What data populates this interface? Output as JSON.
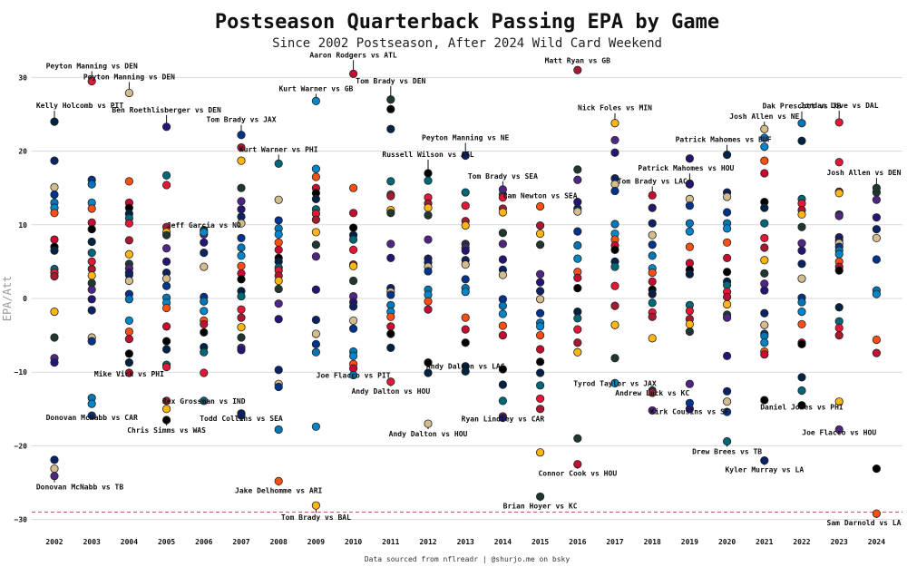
{
  "chart_data": {
    "type": "scatter",
    "title": "Postseason Quarterback Passing EPA by Game",
    "subtitle": "Since 2002 Postseason, After 2024 Wild Card Weekend",
    "ylabel": "EPA/Att",
    "xlabel": "",
    "caption": "Data sourced from nflreadr | @shurjo.me on bsky",
    "ylim": [
      -32,
      33
    ],
    "yticks": [
      30,
      20,
      10,
      0,
      -10,
      -20,
      -30
    ],
    "ytick_labels": [
      "30",
      "20",
      "10",
      "0",
      "−10",
      "−20",
      "−30"
    ],
    "grid": true,
    "reference_line": -29,
    "categories": [
      "2002",
      "2003",
      "2004",
      "2005",
      "2006",
      "2007",
      "2008",
      "2009",
      "2010",
      "2011",
      "2012",
      "2013",
      "2014",
      "2015",
      "2016",
      "2017",
      "2018",
      "2019",
      "2020",
      "2021",
      "2022",
      "2023",
      "2024"
    ],
    "team_colors": [
      "#0b2265",
      "#203731",
      "#e31837",
      "#000000",
      "#0085ca",
      "#d3bc8d",
      "#4f2683",
      "#a71930",
      "#002244",
      "#fb4f14",
      "#00338d",
      "#241773",
      "#ffb612",
      "#006778",
      "#c60c30",
      "#0076b6"
    ],
    "labeled_points": [
      {
        "label": "Peyton Manning vs DEN",
        "season": "2003",
        "y": 29.5
      },
      {
        "label": "Peyton Manning vs DEN",
        "season": "2004",
        "y": 27.9
      },
      {
        "label": "Kelly Holcomb vs PIT",
        "season": "2002",
        "y": 24.0
      },
      {
        "label": "Ben Roethlisberger vs DEN",
        "season": "2005",
        "y": 23.3
      },
      {
        "label": "Aaron Rodgers vs ATL",
        "season": "2010",
        "y": 30.5
      },
      {
        "label": "Tom Brady vs DEN",
        "season": "2011",
        "y": 27.0
      },
      {
        "label": "Kurt Warner vs GB",
        "season": "2009",
        "y": 26.8
      },
      {
        "label": "Matt Ryan vs GB",
        "season": "2016",
        "y": 31.0
      },
      {
        "label": "Tom Brady vs JAX",
        "season": "2007",
        "y": 22.2
      },
      {
        "label": "Kurt Warner vs PHI",
        "season": "2008",
        "y": 18.3
      },
      {
        "label": "Peyton Manning vs NE",
        "season": "2013",
        "y": 19.4
      },
      {
        "label": "Russell Wilson vs ATL",
        "season": "2012",
        "y": 17.0
      },
      {
        "label": "Tom Brady vs SEA",
        "season": "2014",
        "y": 14.8
      },
      {
        "label": "Cam Newton vs SEA",
        "season": "2015",
        "y": 12.5
      },
      {
        "label": "Nick Foles vs MIN",
        "season": "2017",
        "y": 23.8
      },
      {
        "label": "Dak Prescott vs TB",
        "season": "2022",
        "y": 23.8
      },
      {
        "label": "Jordan Love vs DAL",
        "season": "2023",
        "y": 23.9
      },
      {
        "label": "Josh Allen vs NE",
        "season": "2021",
        "y": 23.0
      },
      {
        "label": "Patrick Mahomes vs BUF",
        "season": "2020",
        "y": 19.5
      },
      {
        "label": "Patrick Mahomes vs HOU",
        "season": "2019",
        "y": 15.5
      },
      {
        "label": "Tom Brady vs LAC",
        "season": "2018",
        "y": 14.0
      },
      {
        "label": "Josh Allen vs DEN",
        "season": "2024",
        "y": 15.0
      },
      {
        "label": "Jeff Garcia vs NO",
        "season": "2006",
        "y": 9.0
      },
      {
        "label": "Mike Vick vs PHI",
        "season": "2004",
        "y": -10.1
      },
      {
        "label": "Donovan McNabb vs CAR",
        "season": "2003",
        "y": -15.9
      },
      {
        "label": "Rex Grossman vs IND",
        "season": "2006",
        "y": -13.9
      },
      {
        "label": "Todd Collins vs SEA",
        "season": "2007",
        "y": -15.9
      },
      {
        "label": "Chris Simms vs WAS",
        "season": "2005",
        "y": -16.5
      },
      {
        "label": "Donovan McNabb vs TB",
        "season": "2002",
        "y": -24.1
      },
      {
        "label": "Jake Delhomme vs ARI",
        "season": "2008",
        "y": -24.8
      },
      {
        "label": "Tom Brady vs BAL",
        "season": "2009",
        "y": -28.1
      },
      {
        "label": "Joe Flacco vs PIT",
        "season": "2010",
        "y": -10.4
      },
      {
        "label": "Andy Dalton vs HOU",
        "season": "2011",
        "y": -11.3
      },
      {
        "label": "Andy Dalton vs HOU",
        "season": "2012",
        "y": -17.0
      },
      {
        "label": "Andy Dalton vs LAC",
        "season": "2013",
        "y": -9.2
      },
      {
        "label": "Ryan Lindley vs CAR",
        "season": "2014",
        "y": -16.2
      },
      {
        "label": "Connor Cook vs HOU",
        "season": "2016",
        "y": -22.5
      },
      {
        "label": "Brian Hoyer vs KC",
        "season": "2015",
        "y": -26.9
      },
      {
        "label": "Tyrod Taylor vs JAX",
        "season": "2017",
        "y": -11.5
      },
      {
        "label": "Andrew Luck vs KC",
        "season": "2018",
        "y": -12.8
      },
      {
        "label": "Kirk Cousins vs SF",
        "season": "2019",
        "y": -14.2
      },
      {
        "label": "Drew Brees vs TB",
        "season": "2020",
        "y": -19.4
      },
      {
        "label": "Kyler Murray vs LA",
        "season": "2021",
        "y": -22.0
      },
      {
        "label": "Daniel Jones vs PHI",
        "season": "2022",
        "y": -14.5
      },
      {
        "label": "Joe Flacco vs HOU",
        "season": "2023",
        "y": -17.8
      },
      {
        "label": "Sam Darnold vs LA",
        "season": "2024",
        "y": -29.2
      }
    ],
    "series_by_season": {
      "2002": [
        18.7,
        15.1,
        14.1,
        13.0,
        12.3,
        11.6,
        8.0,
        7.0,
        6.5,
        4.0,
        3.5,
        3.0,
        -1.8,
        -5.3,
        -8.1,
        -8.7,
        -21.9,
        -23.1
      ],
      "2003": [
        16.1,
        15.5,
        13.0,
        12.2,
        10.3,
        9.4,
        7.7,
        6.2,
        5.0,
        4.0,
        3.1,
        2.1,
        1.2,
        -0.1,
        -1.6,
        -5.3,
        -5.8,
        -13.5,
        -14.3
      ],
      "2004": [
        15.9,
        13.0,
        12.3,
        11.5,
        10.9,
        10.2,
        7.9,
        6.0,
        4.7,
        4.1,
        3.5,
        3.2,
        2.4,
        0.6,
        -0.1,
        -3.0,
        -4.5,
        -5.5,
        -7.5,
        -8.7
      ],
      "2005": [
        16.7,
        15.4,
        9.7,
        9.0,
        8.6,
        6.8,
        5.0,
        3.5,
        2.7,
        1.7,
        0.1,
        -0.6,
        -1.3,
        -3.8,
        -5.8,
        -6.9,
        -9.0,
        -9.3,
        -13.9,
        -15.0
      ],
      "2006": [
        9.3,
        8.7,
        7.6,
        6.2,
        4.3,
        0.2,
        -0.4,
        -1.7,
        -3.0,
        -3.5,
        -4.6,
        -6.6,
        -7.3,
        -10.1
      ],
      "2007": [
        20.5,
        18.7,
        15.0,
        13.2,
        12.1,
        11.1,
        10.2,
        8.2,
        6.9,
        5.8,
        4.4,
        3.4,
        2.6,
        1.0,
        0.3,
        -1.5,
        -2.6,
        -3.9,
        -5.3,
        -6.7,
        -7.0,
        -15.6
      ],
      "2008": [
        13.4,
        10.6,
        9.5,
        8.7,
        7.6,
        6.6,
        5.5,
        5.0,
        4.2,
        3.8,
        3.1,
        2.4,
        1.3,
        -0.7,
        -2.8,
        -9.7,
        -11.6,
        -12.0,
        -17.8
      ],
      "2009": [
        17.6,
        16.5,
        15.0,
        14.3,
        13.5,
        12.1,
        11.5,
        10.7,
        9.0,
        7.3,
        5.7,
        1.2,
        -2.9,
        -4.8,
        -6.2,
        -7.3,
        -17.4
      ],
      "2010": [
        15.0,
        11.6,
        9.6,
        8.6,
        8.0,
        6.6,
        4.6,
        4.4,
        2.4,
        0.3,
        -0.5,
        -1.1,
        -3.0,
        -4.1,
        -7.2,
        -7.8,
        -8.9,
        -9.5
      ],
      "2011": [
        25.7,
        23.0,
        15.9,
        14.1,
        13.9,
        12.0,
        11.6,
        7.4,
        5.5,
        1.4,
        0.9,
        0.5,
        -0.9,
        -1.8,
        -2.5,
        -3.8,
        -4.8,
        -6.7
      ],
      "2012": [
        16.0,
        13.7,
        12.9,
        12.3,
        11.3,
        8.0,
        5.4,
        4.9,
        4.3,
        3.7,
        1.2,
        0.5,
        -0.4,
        -1.5,
        -8.7,
        -10.1
      ],
      "2013": [
        14.4,
        12.6,
        10.5,
        9.9,
        7.4,
        6.9,
        6.5,
        5.2,
        4.6,
        2.6,
        1.4,
        0.9,
        -2.6,
        -4.2,
        -6.0,
        -9.9
      ],
      "2014": [
        14.1,
        13.7,
        12.2,
        11.7,
        8.9,
        7.4,
        5.3,
        3.9,
        3.2,
        -0.1,
        -1.0,
        -2.1,
        -3.7,
        -5.0,
        -9.6,
        -11.7,
        -13.9,
        -16.0
      ],
      "2015": [
        9.9,
        8.8,
        7.3,
        3.3,
        2.2,
        1.0,
        -0.1,
        -2.0,
        -3.3,
        -3.8,
        -5.0,
        -6.9,
        -8.6,
        -10.1,
        -11.8,
        -13.6,
        -15.0,
        -20.9
      ],
      "2016": [
        17.5,
        16.1,
        13.1,
        12.2,
        11.8,
        9.1,
        7.2,
        5.4,
        3.6,
        2.8,
        1.4,
        -1.8,
        -2.7,
        -4.2,
        -6.0,
        -7.3,
        -19.0
      ],
      "2017": [
        21.5,
        19.8,
        16.3,
        15.5,
        14.6,
        10.1,
        8.8,
        8.0,
        7.2,
        6.6,
        5.0,
        4.3,
        1.7,
        -1.0,
        -3.6,
        -8.1,
        -11.5
      ],
      "2018": [
        12.3,
        10.2,
        8.6,
        7.3,
        5.8,
        4.1,
        3.5,
        2.3,
        1.2,
        0.6,
        -0.6,
        -1.9,
        -2.5,
        -5.4,
        -12.5,
        -15.2
      ],
      "2019": [
        19.0,
        15.6,
        13.5,
        12.6,
        10.2,
        9.1,
        7.0,
        4.8,
        3.9,
        3.3,
        -0.9,
        -1.7,
        -2.8,
        -3.5,
        -4.5,
        -11.6,
        -15.0
      ],
      "2020": [
        14.4,
        13.8,
        11.7,
        10.2,
        9.5,
        7.6,
        5.5,
        3.6,
        2.3,
        1.8,
        0.9,
        0.2,
        -0.8,
        -2.2,
        -2.6,
        -7.8,
        -12.6,
        -14.0,
        -15.4
      ],
      "2021": [
        21.8,
        20.6,
        18.7,
        17.0,
        13.1,
        12.3,
        10.2,
        8.2,
        6.9,
        5.2,
        3.4,
        2.0,
        1.1,
        -2.0,
        -3.6,
        -4.8,
        -5.1,
        -6.0,
        -7.2,
        -7.6,
        -13.8
      ],
      "2022": [
        21.4,
        13.5,
        12.9,
        12.0,
        11.4,
        9.7,
        7.5,
        6.5,
        4.7,
        2.7,
        0.1,
        -0.5,
        -1.8,
        -3.5,
        -6.0,
        -6.2,
        -10.7,
        -12.5
      ],
      "2023": [
        18.5,
        14.5,
        14.3,
        11.4,
        11.2,
        8.3,
        7.9,
        7.5,
        7.0,
        6.5,
        6.0,
        5.0,
        4.3,
        3.8,
        -1.2,
        -3.1,
        -4.0,
        -5.0,
        -14.0
      ],
      "2024": [
        14.4,
        13.4,
        11.0,
        9.4,
        8.2,
        5.3,
        1.1,
        0.6,
        -5.6,
        -7.4,
        -23.1
      ]
    }
  }
}
